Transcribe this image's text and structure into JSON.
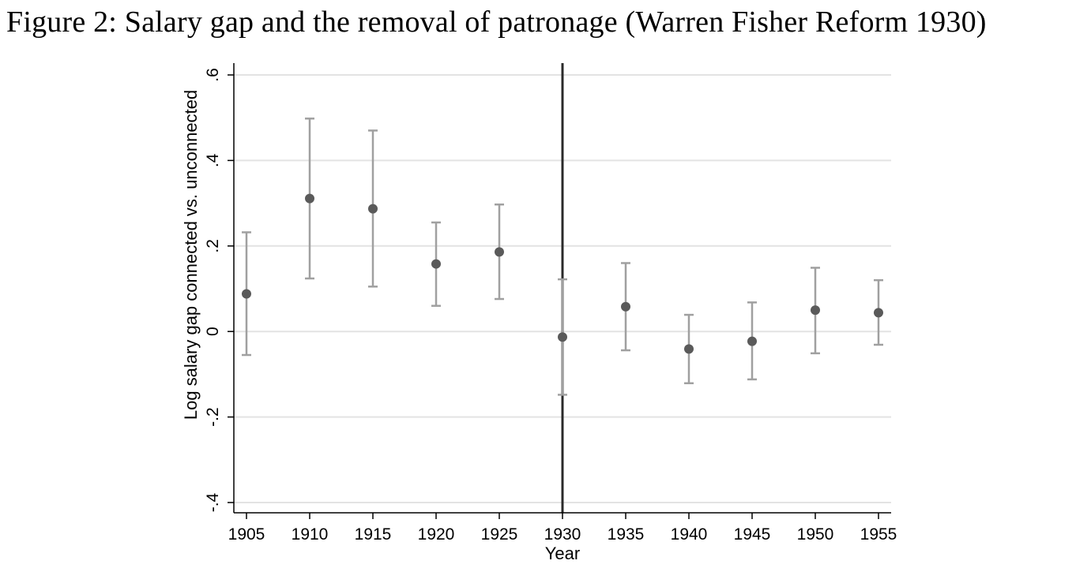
{
  "figure": {
    "title": "Figure 2: Salary gap and the removal of patronage (Warren Fisher Reform 1930)"
  },
  "chart_data": {
    "type": "scatter",
    "title": "",
    "xlabel": "Year",
    "ylabel": "Log salary gap connected vs. unconnected",
    "xlim": [
      1905,
      1955
    ],
    "ylim": [
      -0.4,
      0.6
    ],
    "x_ticks": [
      1905,
      1910,
      1915,
      1920,
      1925,
      1930,
      1935,
      1940,
      1945,
      1950,
      1955
    ],
    "y_ticks": [
      -0.4,
      -0.2,
      0,
      0.2,
      0.4,
      0.6
    ],
    "y_tick_labels": [
      "-.4",
      "-.2",
      "0",
      ".2",
      ".4",
      ".6"
    ],
    "grid": true,
    "vertical_line_x": 1930,
    "series": [
      {
        "x": [
          1905,
          1910,
          1915,
          1920,
          1925,
          1930,
          1935,
          1940,
          1945,
          1950,
          1955
        ],
        "y": [
          0.088,
          0.311,
          0.287,
          0.158,
          0.186,
          -0.013,
          0.058,
          -0.041,
          -0.023,
          0.05,
          0.044
        ],
        "ci_low": [
          -0.055,
          0.124,
          0.105,
          0.06,
          0.076,
          -0.148,
          -0.044,
          -0.121,
          -0.112,
          -0.051,
          -0.031
        ],
        "ci_high": [
          0.232,
          0.498,
          0.47,
          0.255,
          0.297,
          0.122,
          0.16,
          0.039,
          0.068,
          0.149,
          0.12
        ]
      }
    ],
    "colors": {
      "point": "#5a5a5a",
      "error_bar": "#a0a0a0",
      "grid": "#e3e3e3",
      "vertical_line": "#2b2b2b",
      "axis": "#000000"
    }
  }
}
